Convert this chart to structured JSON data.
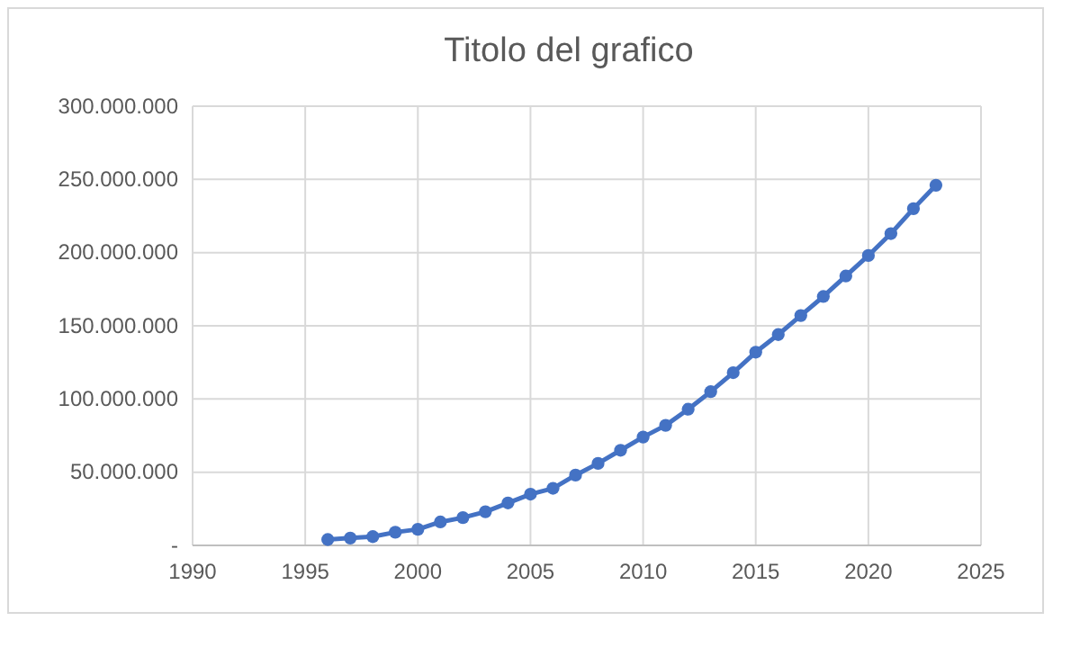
{
  "chart_data": {
    "type": "line",
    "title": "Titolo del grafico",
    "x": [
      1996,
      1997,
      1998,
      1999,
      2000,
      2001,
      2002,
      2003,
      2004,
      2005,
      2006,
      2007,
      2008,
      2009,
      2010,
      2011,
      2012,
      2013,
      2014,
      2015,
      2016,
      2017,
      2018,
      2019,
      2020,
      2021,
      2022,
      2023
    ],
    "series": [
      {
        "color": "#4472c4",
        "values": [
          4000000,
          5000000,
          6000000,
          9000000,
          11000000,
          16000000,
          19000000,
          23000000,
          29000000,
          35000000,
          39000000,
          48000000,
          56000000,
          65000000,
          74000000,
          82000000,
          93000000,
          105000000,
          118000000,
          132000000,
          144000000,
          157000000,
          170000000,
          184000000,
          198000000,
          213000000,
          230000000,
          246000000
        ]
      }
    ],
    "xlim": [
      1990,
      2025
    ],
    "xticks": [
      1990,
      1995,
      2000,
      2005,
      2010,
      2015,
      2020,
      2025
    ],
    "ylim": [
      0,
      300000000
    ],
    "yticks": [
      {
        "value": 0,
        "label": "-"
      },
      {
        "value": 50000000,
        "label": "50.000.000"
      },
      {
        "value": 100000000,
        "label": "100.000.000"
      },
      {
        "value": 150000000,
        "label": "150.000.000"
      },
      {
        "value": 200000000,
        "label": "200.000.000"
      },
      {
        "value": 250000000,
        "label": "250.000.000"
      },
      {
        "value": 300000000,
        "label": "300.000.000"
      }
    ],
    "grid": true,
    "marker": "circle",
    "line_style": "solid"
  }
}
